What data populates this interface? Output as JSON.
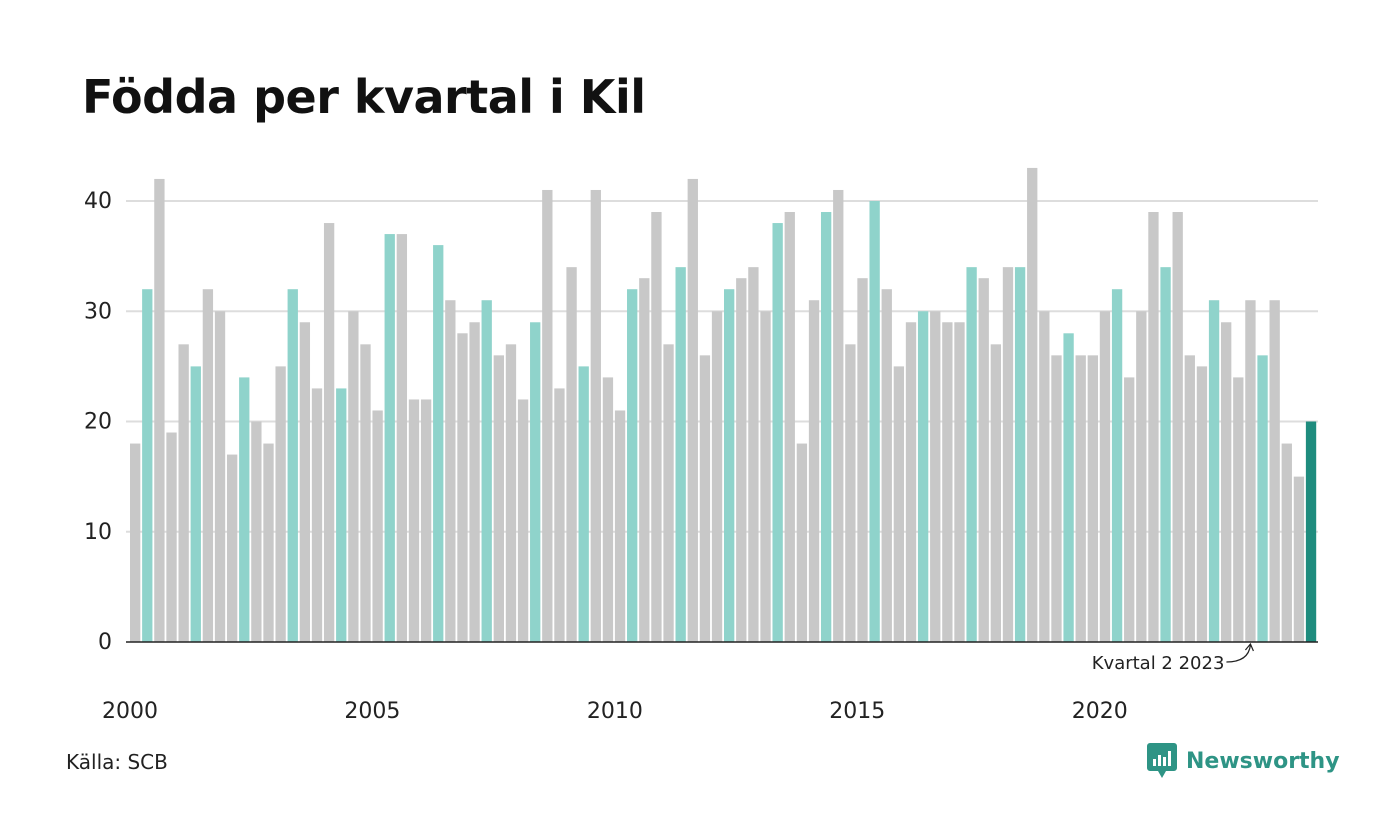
{
  "title": "Födda per kvartal i Kil",
  "source": "Källa: SCB",
  "brand": "Newsworthy",
  "annotation": "Kvartal 2 2023",
  "colors": {
    "bar_default": "#c8c8c8",
    "bar_highlight": "#8fd3cb",
    "bar_latest": "#1e8c7e",
    "grid": "#dddddd",
    "brand": "#2e9485"
  },
  "chart_data": {
    "type": "bar",
    "title": "Födda per kvartal i Kil",
    "xlabel": "",
    "ylabel": "",
    "ylim": [
      0,
      45
    ],
    "yticks": [
      0,
      10,
      20,
      30,
      40
    ],
    "year_ticks": [
      "2000",
      "2005",
      "2010",
      "2015",
      "2020"
    ],
    "first_quarter": "2000 Q1",
    "highlight_quarter": "Q2",
    "grid": true,
    "values": [
      18,
      32,
      42,
      19,
      27,
      25,
      32,
      30,
      17,
      24,
      20,
      18,
      25,
      32,
      29,
      23,
      38,
      23,
      30,
      27,
      21,
      37,
      37,
      22,
      22,
      36,
      31,
      28,
      29,
      31,
      26,
      27,
      22,
      29,
      41,
      23,
      34,
      25,
      41,
      24,
      21,
      32,
      33,
      39,
      27,
      34,
      42,
      26,
      30,
      32,
      33,
      34,
      30,
      38,
      39,
      18,
      31,
      39,
      41,
      27,
      33,
      40,
      32,
      25,
      29,
      30,
      30,
      29,
      29,
      34,
      33,
      27,
      34,
      34,
      43,
      30,
      26,
      28,
      26,
      26,
      30,
      32,
      24,
      30,
      39,
      34,
      39,
      26,
      25,
      31,
      29,
      24,
      31,
      26,
      31,
      18,
      15,
      20
    ]
  }
}
